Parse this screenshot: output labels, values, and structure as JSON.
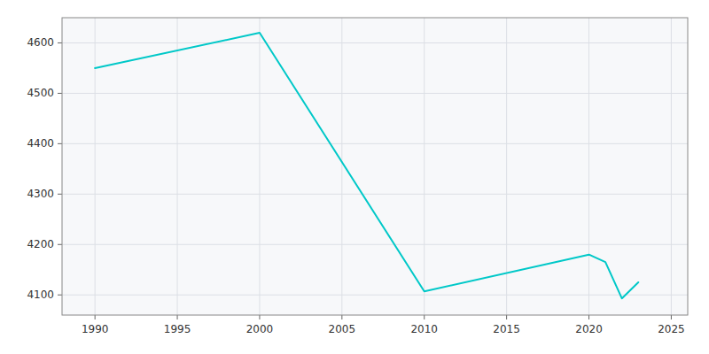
{
  "chart_data": {
    "type": "line",
    "x": [
      1990,
      2000,
      2010,
      2020,
      2021,
      2022,
      2023
    ],
    "values": [
      4550,
      4620,
      4107,
      4180,
      4165,
      4093,
      4125
    ],
    "color": "#00c8c8",
    "xlim": [
      1988,
      2026
    ],
    "ylim": [
      4060,
      4650
    ],
    "xticks": [
      1990,
      1995,
      2000,
      2005,
      2010,
      2015,
      2020,
      2025
    ],
    "yticks": [
      4100,
      4200,
      4300,
      4400,
      4500,
      4600
    ],
    "grid": true
  }
}
